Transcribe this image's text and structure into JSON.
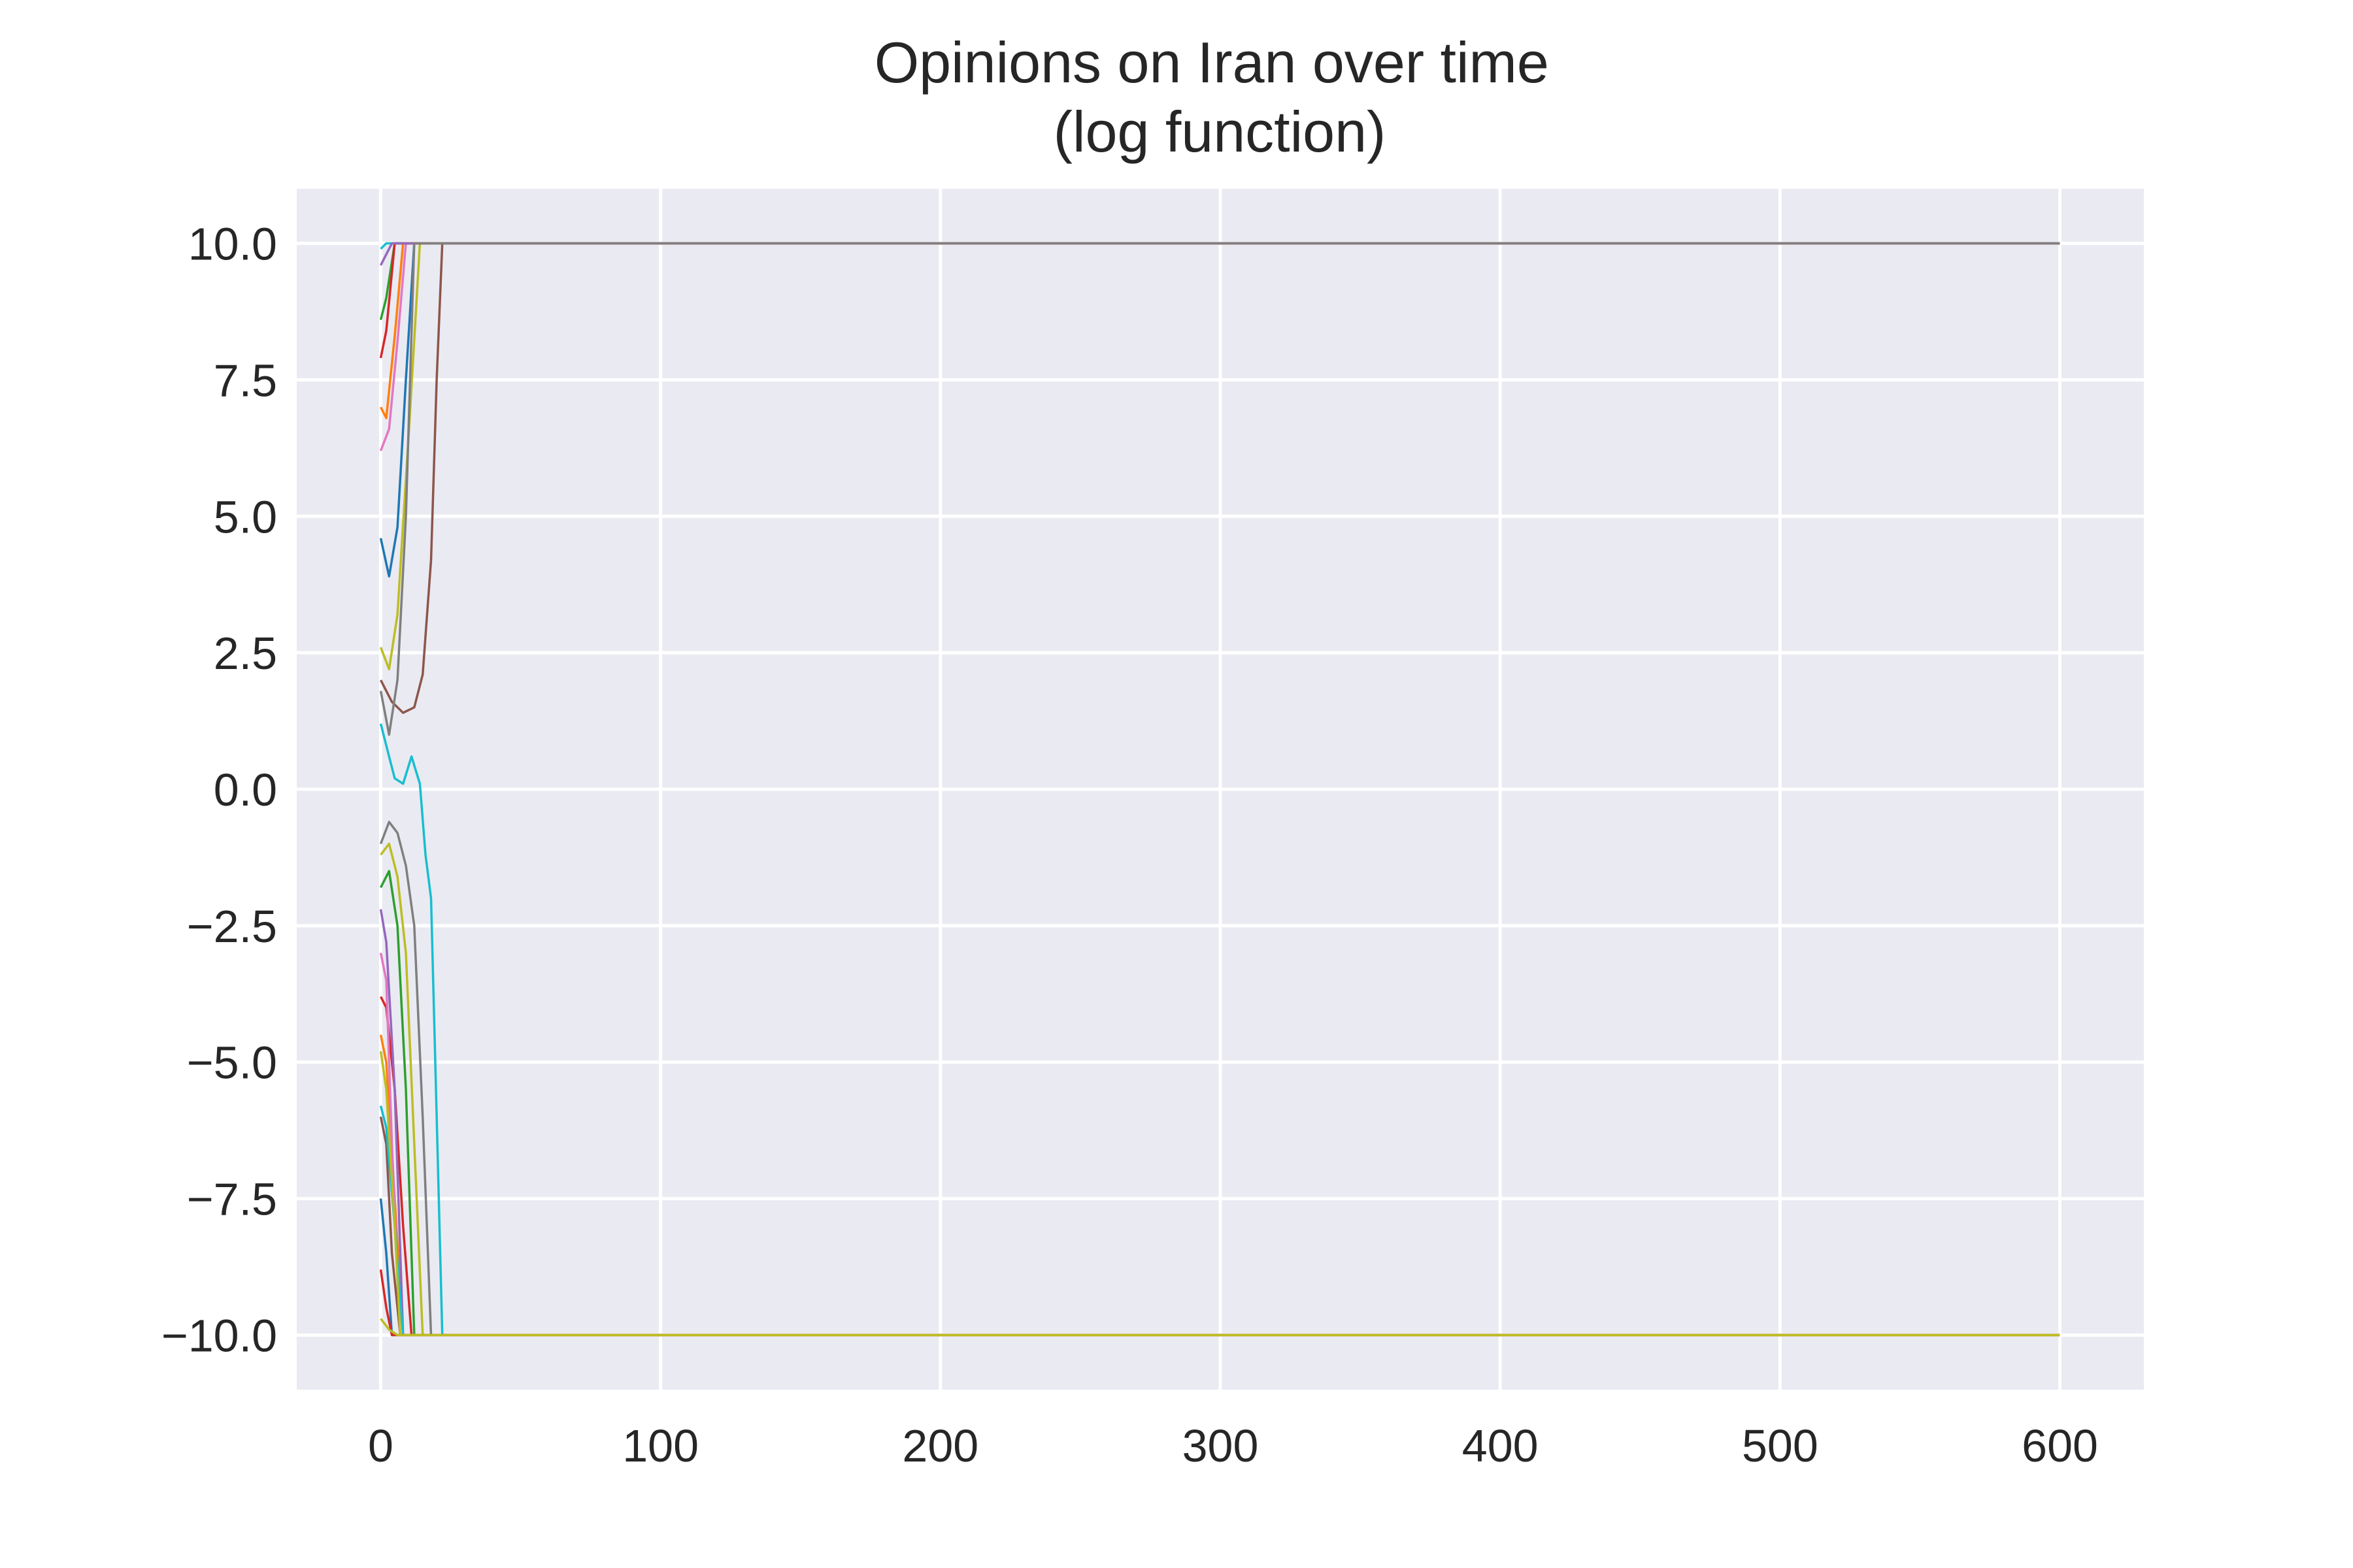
{
  "chart_data": {
    "type": "line",
    "title": "Opinions on Iran over time\n(log function)",
    "title_lines": [
      "Opinions on Iran over time",
      "(log function)"
    ],
    "xlabel": "",
    "ylabel": "",
    "xlim": [
      -30,
      630
    ],
    "ylim": [
      -11,
      11
    ],
    "x_ticks": [
      0,
      100,
      200,
      300,
      400,
      500,
      600
    ],
    "x_tick_labels": [
      "0",
      "100",
      "200",
      "300",
      "400",
      "500",
      "600"
    ],
    "y_ticks": [
      10.0,
      7.5,
      5.0,
      2.5,
      0.0,
      -2.5,
      -5.0,
      -7.5,
      -10.0
    ],
    "y_tick_labels": [
      "10.0",
      "7.5",
      "5.0",
      "2.5",
      "0.0",
      "−2.5",
      "−5.0",
      "−7.5",
      "−10.0"
    ],
    "grid": true,
    "legend": "none",
    "background": "#eaeaf2",
    "series": [
      {
        "color": "#17becf",
        "x": [
          0,
          2,
          5,
          8,
          10,
          12,
          15,
          18,
          22,
          600
        ],
        "y": [
          9.9,
          10,
          10,
          10,
          10,
          10,
          10,
          10,
          10,
          10
        ]
      },
      {
        "color": "#1f77b4",
        "x": [
          0,
          3,
          6,
          9,
          12,
          600
        ],
        "y": [
          4.6,
          3.9,
          4.8,
          7.5,
          10,
          10
        ]
      },
      {
        "color": "#8c564b",
        "x": [
          0,
          4,
          8,
          12,
          15,
          18,
          20,
          22,
          600
        ],
        "y": [
          2.0,
          1.6,
          1.4,
          1.5,
          2.1,
          4.2,
          7.5,
          10,
          10
        ]
      },
      {
        "color": "#e377c2",
        "x": [
          0,
          3,
          6,
          9,
          600
        ],
        "y": [
          6.2,
          6.6,
          8.2,
          10,
          10
        ]
      },
      {
        "color": "#bcbd22",
        "x": [
          0,
          3,
          6,
          10,
          14,
          600
        ],
        "y": [
          2.6,
          2.2,
          3.2,
          6.5,
          10,
          10
        ]
      },
      {
        "color": "#ff7f0e",
        "x": [
          0,
          2,
          5,
          8,
          600
        ],
        "y": [
          7.0,
          6.8,
          8.3,
          10,
          10
        ]
      },
      {
        "color": "#2ca02c",
        "x": [
          0,
          2,
          5,
          600
        ],
        "y": [
          8.6,
          9.0,
          10,
          10
        ]
      },
      {
        "color": "#d62728",
        "x": [
          0,
          2,
          5,
          600
        ],
        "y": [
          7.9,
          8.4,
          10,
          10
        ]
      },
      {
        "color": "#9467bd",
        "x": [
          0,
          2,
          4,
          600
        ],
        "y": [
          9.6,
          9.8,
          10,
          10
        ]
      },
      {
        "color": "#7f7f7f",
        "x": [
          0,
          3,
          6,
          9,
          12,
          600
        ],
        "y": [
          1.8,
          1.0,
          2.0,
          5.0,
          10,
          10
        ]
      },
      {
        "color": "#17becf",
        "x": [
          0,
          3,
          5,
          8,
          11,
          14,
          16,
          18,
          20,
          22,
          600
        ],
        "y": [
          1.2,
          0.6,
          0.2,
          0.1,
          0.6,
          0.1,
          -1.2,
          -2.0,
          -6.0,
          -10,
          -10
        ]
      },
      {
        "color": "#7f7f7f",
        "x": [
          0,
          3,
          6,
          9,
          12,
          15,
          18,
          600
        ],
        "y": [
          -1.0,
          -0.6,
          -0.8,
          -1.4,
          -2.5,
          -6.0,
          -10,
          -10
        ]
      },
      {
        "color": "#bcbd22",
        "x": [
          0,
          3,
          6,
          9,
          12,
          15,
          600
        ],
        "y": [
          -1.2,
          -1.0,
          -1.6,
          -3.0,
          -6.5,
          -10,
          -10
        ]
      },
      {
        "color": "#2ca02c",
        "x": [
          0,
          3,
          6,
          9,
          12,
          600
        ],
        "y": [
          -1.8,
          -1.5,
          -2.5,
          -5.5,
          -10,
          -10
        ]
      },
      {
        "color": "#d62728",
        "x": [
          0,
          2,
          5,
          8,
          11,
          600
        ],
        "y": [
          -3.8,
          -4.0,
          -5.5,
          -8.0,
          -10,
          -10
        ]
      },
      {
        "color": "#ff7f0e",
        "x": [
          0,
          2,
          5,
          8,
          600
        ],
        "y": [
          -4.5,
          -5.0,
          -7.5,
          -10,
          -10
        ]
      },
      {
        "color": "#9467bd",
        "x": [
          0,
          2,
          5,
          8,
          600
        ],
        "y": [
          -2.2,
          -2.8,
          -5.5,
          -10,
          -10
        ]
      },
      {
        "color": "#8c564b",
        "x": [
          0,
          2,
          4,
          7,
          600
        ],
        "y": [
          -6.0,
          -6.5,
          -8.5,
          -10,
          -10
        ]
      },
      {
        "color": "#e377c2",
        "x": [
          0,
          2,
          4,
          7,
          600
        ],
        "y": [
          -3.0,
          -3.5,
          -6.5,
          -10,
          -10
        ]
      },
      {
        "color": "#1f77b4",
        "x": [
          0,
          2,
          4,
          600
        ],
        "y": [
          -7.5,
          -8.5,
          -10,
          -10
        ]
      },
      {
        "color": "#17becf",
        "x": [
          0,
          2,
          5,
          8,
          600
        ],
        "y": [
          -5.8,
          -6.2,
          -8.0,
          -10,
          -10
        ]
      },
      {
        "color": "#bcbd22",
        "x": [
          0,
          2,
          5,
          7,
          600
        ],
        "y": [
          -4.8,
          -5.5,
          -8.0,
          -10,
          -10
        ]
      },
      {
        "color": "#d62728",
        "x": [
          0,
          2,
          4,
          600
        ],
        "y": [
          -8.8,
          -9.5,
          -10,
          -10
        ]
      },
      {
        "color": "#bcbd22",
        "x": [
          0,
          3,
          6,
          9,
          12,
          600
        ],
        "y": [
          -9.7,
          -9.9,
          -10,
          -10,
          -10,
          -10
        ]
      }
    ]
  }
}
